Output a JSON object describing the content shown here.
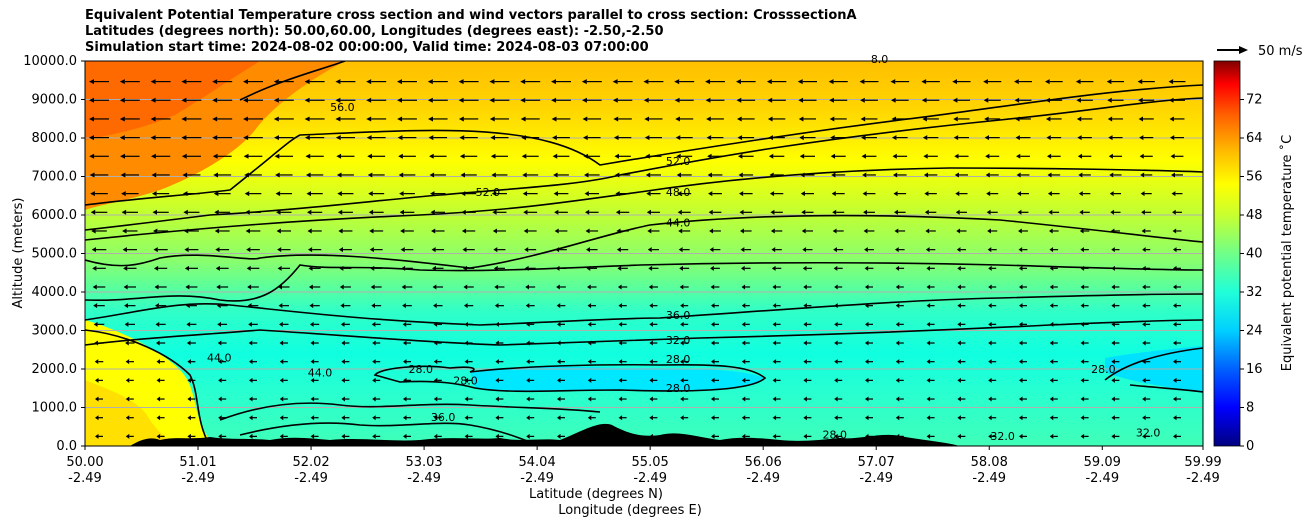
{
  "chart_data": {
    "type": "contourf",
    "title_lines": [
      "Equivalent Potential Temperature cross section and wind vectors parallel to cross section: CrosssectionA",
      "Latitudes (degrees north): 50.00,60.00, Longitudes (degrees east): -2.50,-2.50",
      "Simulation start time: 2024-08-02 00:00:00, Valid time: 2024-08-03 07:00:00"
    ],
    "xlabel_lat": "Latitude (degrees N)",
    "xlabel_lon": "Longitude (degrees E)",
    "ylabel": "Altitude (meters)",
    "xlim": [
      50.0,
      59.99
    ],
    "ylim": [
      0,
      10000
    ],
    "x_ticks": [
      {
        "lat": "50.00",
        "lon": "-2.49",
        "value": 50.0
      },
      {
        "lat": "51.01",
        "lon": "-2.49",
        "value": 51.01
      },
      {
        "lat": "52.02",
        "lon": "-2.49",
        "value": 52.02
      },
      {
        "lat": "53.03",
        "lon": "-2.49",
        "value": 53.03
      },
      {
        "lat": "54.04",
        "lon": "-2.49",
        "value": 54.04
      },
      {
        "lat": "55.05",
        "lon": "-2.49",
        "value": 55.05
      },
      {
        "lat": "56.06",
        "lon": "-2.49",
        "value": 56.06
      },
      {
        "lat": "57.07",
        "lon": "-2.49",
        "value": 57.07
      },
      {
        "lat": "58.08",
        "lon": "-2.49",
        "value": 58.08
      },
      {
        "lat": "59.09",
        "lon": "-2.49",
        "value": 59.09
      },
      {
        "lat": "59.99",
        "lon": "-2.49",
        "value": 59.99
      }
    ],
    "y_ticks": [
      {
        "label": "0.0",
        "value": 0
      },
      {
        "label": "1000.0",
        "value": 1000
      },
      {
        "label": "2000.0",
        "value": 2000
      },
      {
        "label": "3000.0",
        "value": 3000
      },
      {
        "label": "4000.0",
        "value": 4000
      },
      {
        "label": "5000.0",
        "value": 5000
      },
      {
        "label": "6000.0",
        "value": 6000
      },
      {
        "label": "7000.0",
        "value": 7000
      },
      {
        "label": "8000.0",
        "value": 8000
      },
      {
        "label": "9000.0",
        "value": 9000
      },
      {
        "label": "10000.0",
        "value": 10000
      }
    ],
    "grid": true,
    "colorbar": {
      "label": "Equivalent potential temperature ˚C",
      "range": [
        0,
        80
      ],
      "ticks": [
        "0",
        "8",
        "16",
        "24",
        "32",
        "40",
        "48",
        "56",
        "64",
        "72"
      ]
    },
    "quiver_key": {
      "label": "50 m/s",
      "value": 50
    },
    "contour_labels": [
      {
        "text": "56.0",
        "x": 52.3,
        "y": 8700
      },
      {
        "text": "52.0",
        "x": 55.3,
        "y": 7300
      },
      {
        "text": "52.0",
        "x": 53.6,
        "y": 6500
      },
      {
        "text": "48.0",
        "x": 55.3,
        "y": 6500
      },
      {
        "text": "44.0",
        "x": 55.3,
        "y": 5700
      },
      {
        "text": "36.0",
        "x": 55.3,
        "y": 3300
      },
      {
        "text": "32.0",
        "x": 55.3,
        "y": 2650
      },
      {
        "text": "28.0",
        "x": 55.3,
        "y": 2150
      },
      {
        "text": "28.0",
        "x": 55.3,
        "y": 1400
      },
      {
        "text": "44.0",
        "x": 51.2,
        "y": 2200
      },
      {
        "text": "44.0",
        "x": 52.1,
        "y": 1800
      },
      {
        "text": "28.0",
        "x": 53.0,
        "y": 1900
      },
      {
        "text": "28.0",
        "x": 53.4,
        "y": 1600
      },
      {
        "text": "28.0",
        "x": 59.1,
        "y": 1900
      },
      {
        "text": "36.0",
        "x": 53.2,
        "y": 650
      },
      {
        "text": "32.0",
        "x": 58.2,
        "y": 150
      },
      {
        "text": "32.0",
        "x": 59.5,
        "y": 250
      },
      {
        "text": "28.0",
        "x": 56.7,
        "y": 200
      },
      {
        "text": "8.0",
        "x": 57.1,
        "y": 9950
      }
    ]
  }
}
